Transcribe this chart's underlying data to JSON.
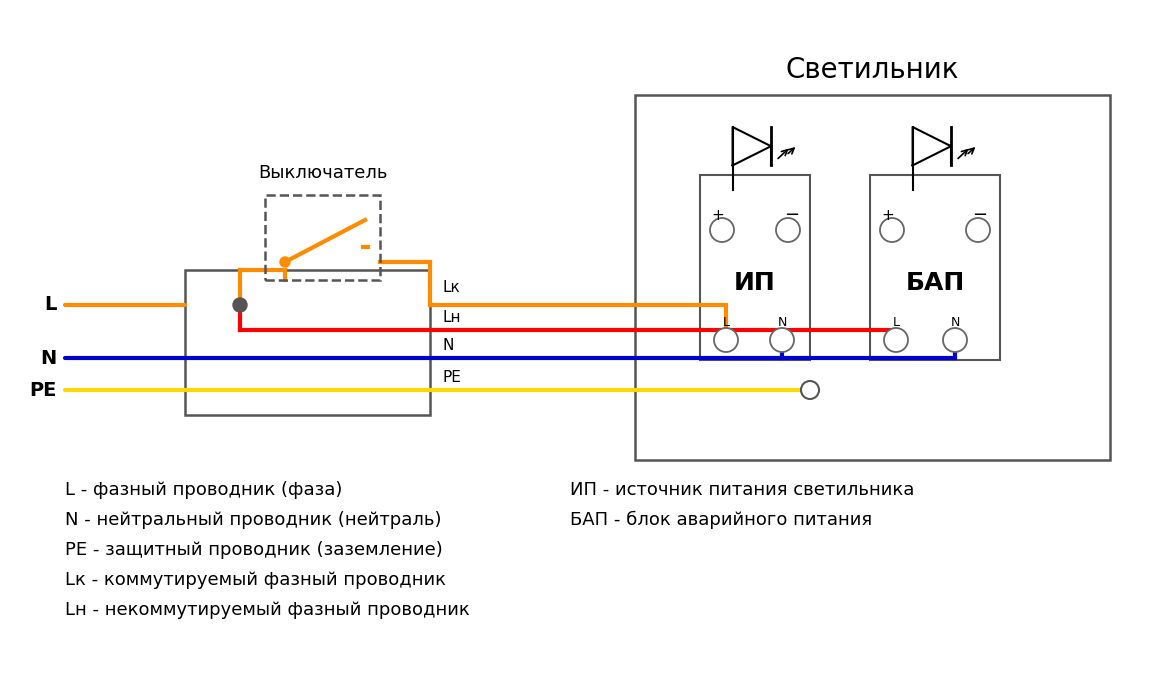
{
  "title": "Светильник",
  "bg_color": "#ffffff",
  "wire_colors": {
    "L": "#FF8C00",
    "Lk": "#FF8C00",
    "Lh": "#FF0000",
    "N": "#0000CD",
    "PE": "#FFD700"
  },
  "legend_left": [
    "L - фазный проводник (фаза)",
    "N - нейтральный проводник (нейтраль)",
    "PE - защитный проводник (заземление)",
    "Lк - коммутируемый фазный проводник",
    "Lн - некоммутируемый фазный проводник"
  ],
  "legend_right": [
    "ИП - источник питания светильника",
    "БАП - блок аварийного питания"
  ],
  "label_switch": "Выключатель",
  "label_IP": "ИП",
  "label_BAP": "БАП"
}
